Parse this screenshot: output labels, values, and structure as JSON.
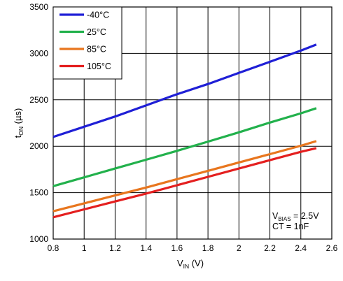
{
  "chart_data": {
    "type": "line",
    "xlabel": {
      "main": "V",
      "sub": "IN",
      "unit": " (V)"
    },
    "ylabel": {
      "main": "t",
      "sub": "ON",
      "unit": " (µs)"
    },
    "xlim": [
      0.8,
      2.6
    ],
    "ylim": [
      1000,
      3500
    ],
    "xticks": [
      0.8,
      1,
      1.2,
      1.4,
      1.6,
      1.8,
      2,
      2.2,
      2.4,
      2.6
    ],
    "yticks": [
      1000,
      1500,
      2000,
      2500,
      3000,
      3500
    ],
    "grid": true,
    "legend_position": "top-left",
    "series": [
      {
        "name": "-40°C",
        "color": "#1f1fd6",
        "x": [
          0.8,
          1.0,
          1.2,
          1.4,
          1.6,
          1.8,
          2.0,
          2.2,
          2.4,
          2.5
        ],
        "y": [
          2100,
          2210,
          2320,
          2440,
          2560,
          2670,
          2790,
          2910,
          3030,
          3095
        ]
      },
      {
        "name": "25°C",
        "color": "#22b14c",
        "x": [
          0.8,
          1.0,
          1.2,
          1.4,
          1.6,
          1.8,
          2.0,
          2.2,
          2.4,
          2.5
        ],
        "y": [
          1570,
          1665,
          1760,
          1855,
          1950,
          2050,
          2150,
          2255,
          2355,
          2410
        ]
      },
      {
        "name": "85°C",
        "color": "#e8761e",
        "x": [
          0.8,
          1.0,
          1.2,
          1.4,
          1.6,
          1.8,
          2.0,
          2.2,
          2.4,
          2.5
        ],
        "y": [
          1300,
          1385,
          1470,
          1555,
          1645,
          1735,
          1825,
          1915,
          2005,
          2055
        ]
      },
      {
        "name": "105°C",
        "color": "#e41f1f",
        "x": [
          0.8,
          1.0,
          1.2,
          1.4,
          1.6,
          1.8,
          2.0,
          2.2,
          2.4,
          2.5
        ],
        "y": [
          1235,
          1320,
          1405,
          1490,
          1580,
          1670,
          1760,
          1850,
          1940,
          1980
        ]
      }
    ],
    "annotation": {
      "line1": {
        "main": "V",
        "sub": "BIAS",
        "rest": " = 2.5V"
      },
      "line2": "CT = 1nF"
    }
  }
}
